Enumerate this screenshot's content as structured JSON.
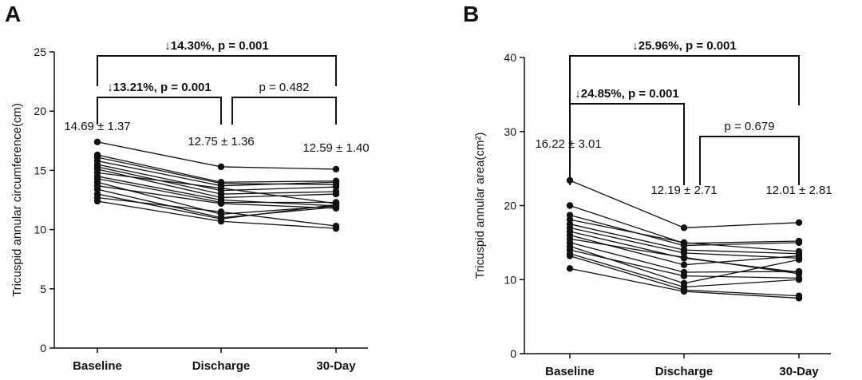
{
  "chart_data": [
    {
      "panel": "A",
      "type": "line",
      "ylabel": "Tricuspid annular circumference(cm)",
      "ylim": [
        0,
        25
      ],
      "yticks": [
        "0",
        "5",
        "10",
        "15",
        "20",
        "25"
      ],
      "categories": [
        "Baseline",
        "Discharge",
        "30-Day"
      ],
      "stats": [
        "14.69 ± 1.37",
        "12.75 ± 1.36",
        "12.59 ± 1.40"
      ],
      "brackets": [
        {
          "from": 0,
          "to": 2,
          "text": "↓14.30%,  p = 0.001",
          "bold": true
        },
        {
          "from": 0,
          "to": 1,
          "text": "↓13.21%,  p = 0.001",
          "bold": true
        },
        {
          "from": 1,
          "to": 2,
          "text": "p = 0.482",
          "bold": false
        }
      ],
      "series": [
        {
          "values": [
            17.4,
            15.3,
            15.1
          ]
        },
        {
          "values": [
            16.3,
            14.0,
            14.1
          ]
        },
        {
          "values": [
            16.1,
            13.9,
            13.8
          ]
        },
        {
          "values": [
            15.8,
            13.7,
            14.0
          ]
        },
        {
          "values": [
            15.5,
            13.3,
            13.6
          ]
        },
        {
          "values": [
            15.3,
            13.0,
            13.2
          ]
        },
        {
          "values": [
            15.1,
            12.7,
            13.0
          ]
        },
        {
          "values": [
            14.8,
            13.5,
            12.2
          ]
        },
        {
          "values": [
            14.5,
            12.5,
            12.0
          ]
        },
        {
          "values": [
            14.3,
            12.3,
            12.3
          ]
        },
        {
          "values": [
            14.0,
            11.3,
            12.0
          ]
        },
        {
          "values": [
            13.7,
            12.2,
            11.8
          ]
        },
        {
          "values": [
            13.4,
            11.0,
            11.9
          ]
        },
        {
          "values": [
            13.0,
            10.9,
            12.1
          ]
        },
        {
          "values": [
            12.7,
            11.5,
            10.3
          ]
        },
        {
          "values": [
            12.4,
            10.7,
            10.1
          ]
        }
      ]
    },
    {
      "panel": "B",
      "type": "line",
      "ylabel": "Tricuspid annular area(cm²)",
      "ylim": [
        0,
        40
      ],
      "yticks": [
        "0",
        "10",
        "20",
        "30",
        "40"
      ],
      "categories": [
        "Baseline",
        "Discharge",
        "30-Day"
      ],
      "stats": [
        "16.22 ± 3.01",
        "12.19 ± 2.71",
        "12.01 ± 2.81"
      ],
      "brackets": [
        {
          "from": 0,
          "to": 2,
          "text": "↓25.96%,  p = 0.001",
          "bold": true
        },
        {
          "from": 0,
          "to": 1,
          "text": "↓24.85%,  p = 0.001",
          "bold": true
        },
        {
          "from": 1,
          "to": 2,
          "text": "p = 0.679",
          "bold": false
        }
      ],
      "series": [
        {
          "values": [
            23.4,
            17.0,
            17.7
          ]
        },
        {
          "values": [
            20.0,
            14.9,
            15.2
          ]
        },
        {
          "values": [
            18.7,
            14.6,
            15.0
          ]
        },
        {
          "values": [
            18.1,
            15.0,
            13.8
          ]
        },
        {
          "values": [
            17.5,
            14.0,
            13.5
          ]
        },
        {
          "values": [
            17.0,
            13.6,
            12.9
          ]
        },
        {
          "values": [
            16.5,
            12.9,
            11.0
          ]
        },
        {
          "values": [
            16.0,
            12.0,
            13.2
          ]
        },
        {
          "values": [
            15.5,
            13.0,
            10.8
          ]
        },
        {
          "values": [
            15.0,
            11.0,
            11.1
          ]
        },
        {
          "values": [
            14.5,
            9.5,
            12.7
          ]
        },
        {
          "values": [
            14.0,
            10.5,
            10.2
          ]
        },
        {
          "values": [
            13.5,
            9.0,
            10.0
          ]
        },
        {
          "values": [
            13.2,
            8.6,
            7.8
          ]
        },
        {
          "values": [
            11.5,
            8.4,
            7.5
          ]
        }
      ]
    }
  ]
}
